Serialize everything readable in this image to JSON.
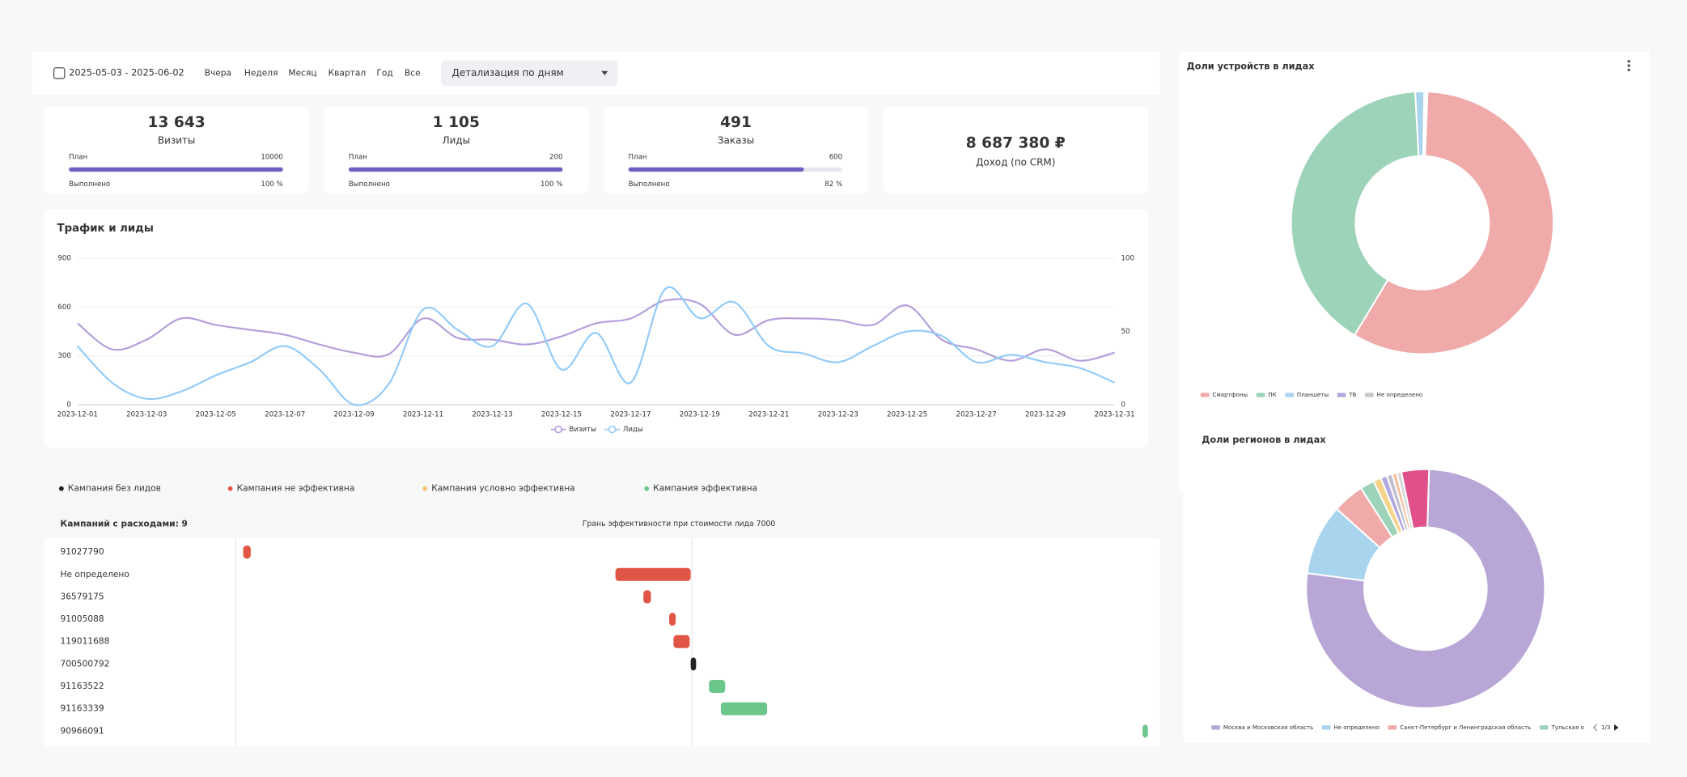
{
  "toolbar": {
    "date_range": "2025-05-03 - 2025-06-02",
    "periods": [
      "Вчера",
      "Неделя",
      "Месяц",
      "Квартал",
      "Год",
      "Все"
    ],
    "detail": "Детализация по дням"
  },
  "kpis": [
    {
      "value": "13 643",
      "label": "Визиты",
      "plan_label": "План",
      "plan": 10000,
      "done_label": "Выполнено",
      "done": 100,
      "done_text": "100 %"
    },
    {
      "value": "1 105",
      "label": "Лиды",
      "plan_label": "План",
      "plan": 200,
      "done_label": "Выполнено",
      "done": 100,
      "done_text": "100 %"
    },
    {
      "value": "491",
      "label": "Заказы",
      "plan_label": "План",
      "plan": 600,
      "done_label": "Выполнено",
      "done": 82,
      "done_text": "82 %"
    },
    {
      "value": "8 687 380 ₽",
      "label": "Доход (по CRM)"
    }
  ],
  "chart_data": [
    {
      "type": "line",
      "title": "Трафик и лиды",
      "categories": [
        "2023-12-01",
        null,
        "2023-12-03",
        null,
        "2023-12-05",
        null,
        "2023-12-07",
        null,
        "2023-12-09",
        null,
        "2023-12-11",
        null,
        "2023-12-13",
        null,
        "2023-12-15",
        null,
        "2023-12-17",
        null,
        "2023-12-19",
        null,
        "2023-12-21",
        null,
        "2023-12-23",
        null,
        "2023-12-25",
        null,
        "2023-12-27",
        null,
        "2023-12-29",
        null,
        "2023-12-31"
      ],
      "series": [
        {
          "name": "Визиты",
          "color": "#b39ddb",
          "axis": "y",
          "values": [
            500,
            340,
            400,
            530,
            490,
            460,
            430,
            370,
            320,
            310,
            530,
            410,
            400,
            370,
            420,
            500,
            530,
            640,
            620,
            430,
            520,
            530,
            520,
            490,
            610,
            400,
            340,
            270,
            340,
            270,
            320
          ]
        },
        {
          "name": "Лиды",
          "color": "#90caf9",
          "axis": "y2",
          "values": [
            40,
            15,
            4,
            9,
            20,
            29,
            40,
            24,
            0,
            14,
            65,
            51,
            40,
            69,
            24,
            49,
            15,
            79,
            59,
            70,
            40,
            35,
            29,
            40,
            50,
            47,
            29,
            34,
            29,
            25,
            15
          ]
        }
      ],
      "ylim": [
        0,
        900
      ],
      "yticks": [
        0,
        300,
        600,
        900
      ],
      "y2lim": [
        0,
        100
      ],
      "y2ticks": [
        0,
        50,
        100
      ],
      "grid": true
    },
    {
      "type": "donut",
      "title": "Доли устройств в лидах",
      "categories": [
        "Смартфоны",
        "ПК",
        "Планшеты",
        "ТВ",
        "Не определено"
      ],
      "values": [
        58,
        40.5,
        1.1,
        0.2,
        0.2
      ],
      "colors": [
        "#f0aaaa",
        "#9dd3b8",
        "#a8d4ee",
        "#b2a8e0",
        "#c8c8c8"
      ]
    },
    {
      "type": "donut",
      "title": "Доли регионов в лидах",
      "categories": [
        "Москва и Московская область",
        "Не определено",
        "Санкт-Петербург и Ленинградская область",
        "Тульская о",
        null,
        null,
        null,
        null,
        null,
        null
      ],
      "values": [
        72,
        9,
        4,
        1.8,
        1,
        0.8,
        0.7,
        0.6,
        0.6,
        3.5
      ],
      "colors": [
        "#b8a6d6",
        "#a8d4ee",
        "#f0aaaa",
        "#9dd3b8",
        "#f5d38a",
        "#b2a8e0",
        "#c0c0d0",
        "#f0c0a0",
        "#d8d8d8",
        "#e0508a"
      ],
      "legend_pager": "1/3"
    },
    {
      "type": "range",
      "title": "Кампаний с расходами: 9",
      "threshold_label": "Грань эффективности при стоимости лида 7000",
      "threshold": 7000,
      "xlim": [
        0,
        14000
      ],
      "statuses": [
        {
          "name": "Кампания без лидов",
          "color": "#222222"
        },
        {
          "name": "Кампания не эффективна",
          "color": "#e05545"
        },
        {
          "name": "Кампания условно эффективна",
          "color": "#f5c26b"
        },
        {
          "name": "Кампания эффективна",
          "color": "#6cc58a"
        }
      ],
      "rows": [
        {
          "name": "91027790",
          "start": 116,
          "end": 231,
          "status": 1
        },
        {
          "name": "Не определено",
          "start": 5828,
          "end": 6983,
          "status": 1
        },
        {
          "name": "36579175",
          "start": 6257,
          "end": 6373,
          "status": 1
        },
        {
          "name": "91005088",
          "start": 6653,
          "end": 6752,
          "status": 1
        },
        {
          "name": "119011688",
          "start": 6719,
          "end": 6967,
          "status": 1
        },
        {
          "name": "700500792",
          "start": 6983,
          "end": 7066,
          "status": 0
        },
        {
          "name": "91163522",
          "start": 7264,
          "end": 7512,
          "status": 3
        },
        {
          "name": "91163339",
          "start": 7446,
          "end": 8156,
          "status": 3
        },
        {
          "name": "90966091",
          "start": 13917,
          "end": 14000,
          "status": 3
        }
      ]
    }
  ]
}
